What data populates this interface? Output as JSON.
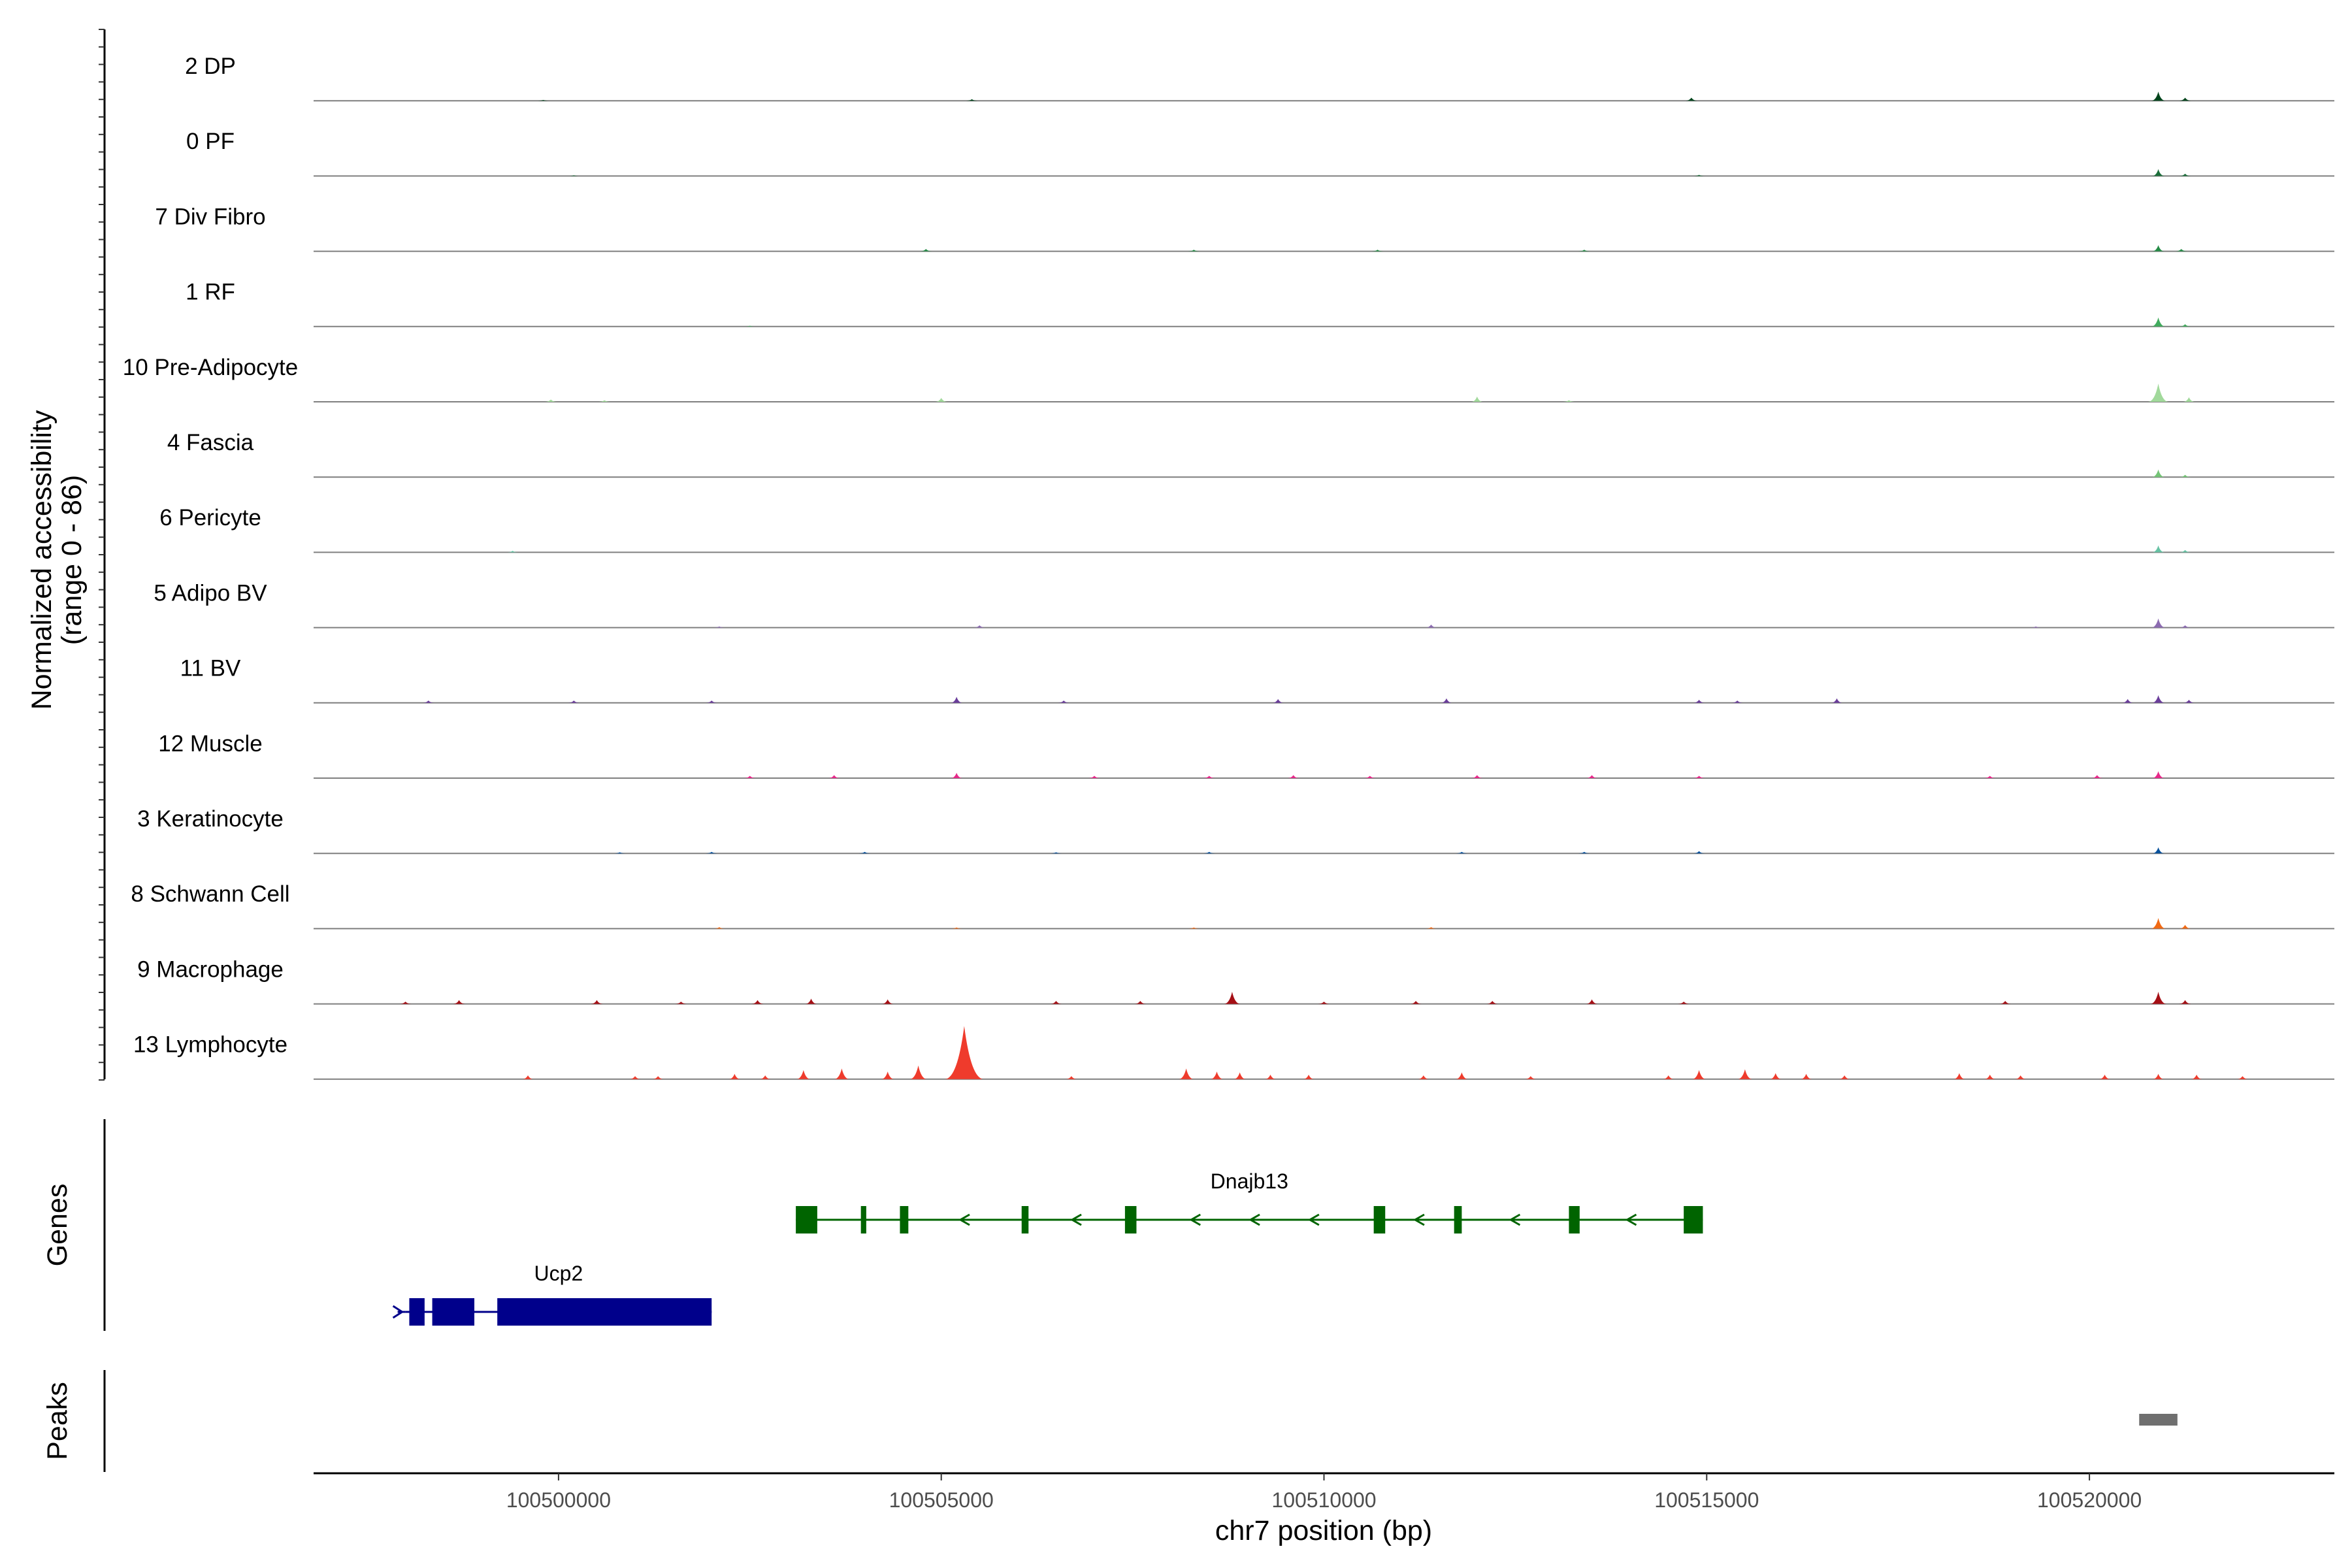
{
  "chart_data": {
    "type": "area",
    "title": "",
    "xlabel": "chr7 position (bp)",
    "ylabel": "Normalized accessibility",
    "ylabel_sub": "(range 0 - 86)",
    "y_range": [
      0,
      86
    ],
    "x_range": [
      100496800,
      100523200
    ],
    "x_ticks": [
      {
        "value": 100500000,
        "label": "100500000"
      },
      {
        "value": 100505000,
        "label": "100505000"
      },
      {
        "value": 100510000,
        "label": "100510000"
      },
      {
        "value": 100515000,
        "label": "100515000"
      },
      {
        "value": 100520000,
        "label": "100520000"
      }
    ],
    "series": [
      {
        "name": "2 DP",
        "color": "#00441b",
        "peaks": [
          [
            100514800,
            4
          ],
          [
            100520900,
            12
          ],
          [
            100521250,
            4
          ],
          [
            100505400,
            2
          ],
          [
            100499800,
            1
          ]
        ]
      },
      {
        "name": "0 PF",
        "color": "#1b6e3a",
        "peaks": [
          [
            100520900,
            9
          ],
          [
            100521250,
            3
          ],
          [
            100514900,
            1.5
          ],
          [
            100500200,
            1
          ]
        ]
      },
      {
        "name": "7 Div Fibro",
        "color": "#238b45",
        "peaks": [
          [
            100504800,
            3
          ],
          [
            100508300,
            2
          ],
          [
            100520900,
            8
          ],
          [
            100521200,
            3
          ],
          [
            100510700,
            2
          ],
          [
            100513400,
            2
          ]
        ]
      },
      {
        "name": "1 RF",
        "color": "#41ab5d",
        "peaks": [
          [
            100520900,
            12
          ],
          [
            100521250,
            3
          ],
          [
            100502500,
            1
          ]
        ]
      },
      {
        "name": "10 Pre-Adipocyte",
        "color": "#a1d99b",
        "peaks": [
          [
            100520900,
            24
          ],
          [
            100521300,
            6
          ],
          [
            100512000,
            7
          ],
          [
            100505000,
            5
          ],
          [
            100499900,
            3
          ],
          [
            100500600,
            2
          ],
          [
            100513200,
            2
          ]
        ]
      },
      {
        "name": "4 Fascia",
        "color": "#74c476",
        "peaks": [
          [
            100520900,
            10
          ],
          [
            100521250,
            3
          ]
        ]
      },
      {
        "name": "6 Pericyte",
        "color": "#66c2a4",
        "peaks": [
          [
            100520900,
            9
          ],
          [
            100521250,
            3
          ],
          [
            100499400,
            2
          ]
        ]
      },
      {
        "name": "5 Adipo BV",
        "color": "#8c6bb1",
        "peaks": [
          [
            100520900,
            12
          ],
          [
            100521250,
            3
          ],
          [
            100511400,
            4
          ],
          [
            100505500,
            3
          ],
          [
            100519300,
            1.5
          ],
          [
            100502100,
            1.5
          ]
        ]
      },
      {
        "name": "11 BV",
        "color": "#6a3d9a",
        "peaks": [
          [
            100505200,
            8
          ],
          [
            100520900,
            10
          ],
          [
            100520500,
            5
          ],
          [
            100521300,
            4
          ],
          [
            100516700,
            6
          ],
          [
            100511600,
            6
          ],
          [
            100509400,
            5
          ],
          [
            100514900,
            4
          ],
          [
            100500200,
            3
          ],
          [
            100498300,
            3
          ],
          [
            100506600,
            3
          ],
          [
            100502000,
            3
          ],
          [
            100515400,
            3
          ]
        ]
      },
      {
        "name": "12 Muscle",
        "color": "#e7298a",
        "peaks": [
          [
            100520900,
            9
          ],
          [
            100505200,
            7
          ],
          [
            100503600,
            4
          ],
          [
            100509600,
            4
          ],
          [
            100512000,
            4
          ],
          [
            100513500,
            4
          ],
          [
            100520100,
            4
          ],
          [
            100518700,
            3
          ],
          [
            100502500,
            3
          ],
          [
            100507000,
            3
          ],
          [
            100508500,
            3
          ],
          [
            100510600,
            3
          ],
          [
            100514900,
            3
          ]
        ]
      },
      {
        "name": "3 Keratinocyte",
        "color": "#08519c",
        "peaks": [
          [
            100520900,
            8
          ],
          [
            100514900,
            3
          ],
          [
            100502000,
            2
          ],
          [
            100504000,
            2
          ],
          [
            100508500,
            2
          ],
          [
            100511800,
            2
          ],
          [
            100513400,
            2
          ],
          [
            100500800,
            1.5
          ],
          [
            100506500,
            1.5
          ]
        ]
      },
      {
        "name": "8 Schwann Cell",
        "color": "#f16913",
        "peaks": [
          [
            100520900,
            14
          ],
          [
            100521250,
            5
          ],
          [
            100511400,
            2
          ],
          [
            100502100,
            2
          ],
          [
            100505200,
            1.5
          ],
          [
            100508300,
            1.5
          ]
        ]
      },
      {
        "name": "9 Macrophage",
        "color": "#a50f15",
        "peaks": [
          [
            100508800,
            16
          ],
          [
            100520900,
            16
          ],
          [
            100521250,
            5
          ],
          [
            100503300,
            7
          ],
          [
            100504300,
            6
          ],
          [
            100513500,
            6
          ],
          [
            100500500,
            5
          ],
          [
            100498700,
            5
          ],
          [
            100502600,
            5
          ],
          [
            100506500,
            4
          ],
          [
            100507600,
            4
          ],
          [
            100511200,
            4
          ],
          [
            100512200,
            4
          ],
          [
            100518900,
            4
          ],
          [
            100510000,
            3
          ],
          [
            100514700,
            3
          ],
          [
            100498000,
            3
          ],
          [
            100501600,
            3
          ]
        ]
      },
      {
        "name": "13 Lymphocyte",
        "color": "#ef3b2c",
        "peaks": [
          [
            100505300,
            70
          ],
          [
            100504700,
            18
          ],
          [
            100504300,
            10
          ],
          [
            100503700,
            14
          ],
          [
            100503200,
            12
          ],
          [
            100508200,
            14
          ],
          [
            100508600,
            10
          ],
          [
            100508900,
            9
          ],
          [
            100509300,
            6
          ],
          [
            100509800,
            6
          ],
          [
            100511800,
            9
          ],
          [
            100511300,
            5
          ],
          [
            100514900,
            12
          ],
          [
            100514500,
            5
          ],
          [
            100515500,
            13
          ],
          [
            100515900,
            8
          ],
          [
            100516300,
            7
          ],
          [
            100516800,
            5
          ],
          [
            100518300,
            8
          ],
          [
            100518700,
            6
          ],
          [
            100519100,
            5
          ],
          [
            100520200,
            6
          ],
          [
            100520900,
            7
          ],
          [
            100521400,
            6
          ],
          [
            100522000,
            4
          ],
          [
            100502300,
            7
          ],
          [
            100502700,
            5
          ],
          [
            100501000,
            4
          ],
          [
            100501300,
            4
          ],
          [
            100499600,
            5
          ],
          [
            100506700,
            4
          ],
          [
            100512700,
            4
          ]
        ]
      }
    ],
    "genes_track_label": "Genes",
    "peaks_track_label": "Peaks",
    "genes": [
      {
        "name": "Dnajb13",
        "strand": "-",
        "color": "#006400",
        "start": 100503100,
        "end": 100514950,
        "exons": [
          [
            100503100,
            100503380
          ],
          [
            100503950,
            100504020
          ],
          [
            100504460,
            100504570
          ],
          [
            100506050,
            100506140
          ],
          [
            100507400,
            100507550
          ],
          [
            100510650,
            100510800
          ],
          [
            100511700,
            100511800
          ],
          [
            100513200,
            100513340
          ],
          [
            100514700,
            100514950
          ]
        ]
      },
      {
        "name": "Ucp2",
        "strand": "+",
        "color": "#00008b",
        "start": 100498000,
        "end": 100502000,
        "exons": [
          [
            100498050,
            100498250
          ],
          [
            100498350,
            100498900
          ],
          [
            100499200,
            100502000
          ]
        ]
      }
    ],
    "peak_regions": [
      [
        100520650,
        100521150
      ]
    ]
  }
}
